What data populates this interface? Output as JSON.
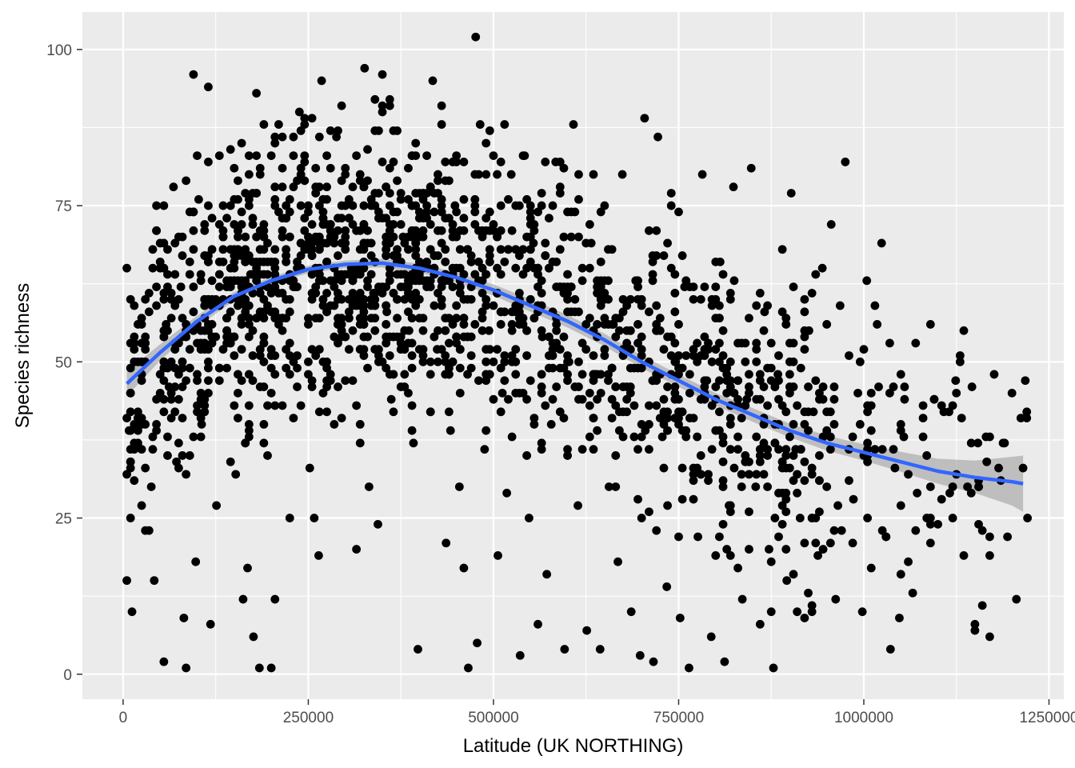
{
  "chart_data": {
    "type": "scatter",
    "title": "",
    "xlabel": "Latitude (UK NORTHING)",
    "ylabel": "Species richness",
    "xlim": [
      -55000,
      1270000
    ],
    "ylim": [
      -4,
      106
    ],
    "x_ticks": [
      0,
      250000,
      500000,
      750000,
      1000000,
      1250000
    ],
    "x_tick_labels": [
      "0",
      "250000",
      "500000",
      "750000",
      "1000000",
      "1250000"
    ],
    "y_ticks": [
      0,
      25,
      50,
      75,
      100
    ],
    "y_tick_labels": [
      "0",
      "25",
      "50",
      "75",
      "100"
    ],
    "grid": true,
    "legend": "none",
    "colors": {
      "panel": "#ebebeb",
      "grid": "#ffffff",
      "points": "#000000",
      "smooth_line": "#3366ff",
      "ribbon": "#999999"
    },
    "points": {
      "description_free": true,
      "sampled": [
        [
          5000,
          15
        ],
        [
          8000,
          39
        ],
        [
          12000,
          10
        ],
        [
          15000,
          54
        ],
        [
          20000,
          41
        ],
        [
          25000,
          27
        ],
        [
          30000,
          60
        ],
        [
          35000,
          23
        ],
        [
          38000,
          30
        ],
        [
          42000,
          15
        ],
        [
          45000,
          75
        ],
        [
          50000,
          69
        ],
        [
          55000,
          2
        ],
        [
          58000,
          56
        ],
        [
          62000,
          46
        ],
        [
          68000,
          78
        ],
        [
          72000,
          34
        ],
        [
          78000,
          62
        ],
        [
          82000,
          9
        ],
        [
          85000,
          1
        ],
        [
          90000,
          49
        ],
        [
          95000,
          96
        ],
        [
          98000,
          18
        ],
        [
          102000,
          76
        ],
        [
          106000,
          40
        ],
        [
          110000,
          67
        ],
        [
          115000,
          94
        ],
        [
          118000,
          8
        ],
        [
          122000,
          59
        ],
        [
          126000,
          27
        ],
        [
          130000,
          83
        ],
        [
          135000,
          70
        ],
        [
          140000,
          55
        ],
        [
          145000,
          62
        ],
        [
          152000,
          32
        ],
        [
          160000,
          85
        ],
        [
          162000,
          12
        ],
        [
          168000,
          17
        ],
        [
          172000,
          64
        ],
        [
          176000,
          6
        ],
        [
          180000,
          93
        ],
        [
          184000,
          1
        ],
        [
          190000,
          71
        ],
        [
          195000,
          66
        ],
        [
          200000,
          1
        ],
        [
          205000,
          12
        ],
        [
          210000,
          88
        ],
        [
          215000,
          43
        ],
        [
          220000,
          75
        ],
        [
          225000,
          25
        ],
        [
          232000,
          62
        ],
        [
          238000,
          90
        ],
        [
          245000,
          73
        ],
        [
          252000,
          33
        ],
        [
          258000,
          25
        ],
        [
          264000,
          19
        ],
        [
          268000,
          95
        ],
        [
          275000,
          69
        ],
        [
          280000,
          59
        ],
        [
          288000,
          86
        ],
        [
          295000,
          91
        ],
        [
          300000,
          47
        ],
        [
          308000,
          65
        ],
        [
          315000,
          20
        ],
        [
          320000,
          71
        ],
        [
          326000,
          97
        ],
        [
          332000,
          30
        ],
        [
          338000,
          61
        ],
        [
          344000,
          24
        ],
        [
          350000,
          96
        ],
        [
          356000,
          58
        ],
        [
          362000,
          44
        ],
        [
          370000,
          87
        ],
        [
          378000,
          70
        ],
        [
          386000,
          55
        ],
        [
          392000,
          37
        ],
        [
          398000,
          4
        ],
        [
          405000,
          77
        ],
        [
          412000,
          65
        ],
        [
          418000,
          95
        ],
        [
          424000,
          52
        ],
        [
          430000,
          88
        ],
        [
          436000,
          21
        ],
        [
          442000,
          39
        ],
        [
          448000,
          75
        ],
        [
          454000,
          30
        ],
        [
          460000,
          17
        ],
        [
          466000,
          1
        ],
        [
          470000,
          60
        ],
        [
          476000,
          102
        ],
        [
          478000,
          5
        ],
        [
          482000,
          88
        ],
        [
          488000,
          36
        ],
        [
          494000,
          55
        ],
        [
          500000,
          72
        ],
        [
          506000,
          19
        ],
        [
          512000,
          45
        ],
        [
          518000,
          29
        ],
        [
          524000,
          80
        ],
        [
          530000,
          59
        ],
        [
          536000,
          3
        ],
        [
          542000,
          83
        ],
        [
          548000,
          25
        ],
        [
          554000,
          69
        ],
        [
          560000,
          8
        ],
        [
          566000,
          54
        ],
        [
          572000,
          16
        ],
        [
          578000,
          40
        ],
        [
          584000,
          82
        ],
        [
          590000,
          62
        ],
        [
          596000,
          4
        ],
        [
          602000,
          50
        ],
        [
          608000,
          88
        ],
        [
          614000,
          27
        ],
        [
          620000,
          36
        ],
        [
          626000,
          7
        ],
        [
          632000,
          69
        ],
        [
          638000,
          48
        ],
        [
          644000,
          4
        ],
        [
          650000,
          75
        ],
        [
          656000,
          30
        ],
        [
          662000,
          56
        ],
        [
          668000,
          18
        ],
        [
          674000,
          80
        ],
        [
          680000,
          44
        ],
        [
          686000,
          10
        ],
        [
          692000,
          63
        ],
        [
          698000,
          3
        ],
        [
          704000,
          89
        ],
        [
          710000,
          26
        ],
        [
          716000,
          2
        ],
        [
          722000,
          86
        ],
        [
          728000,
          38
        ],
        [
          734000,
          14
        ],
        [
          740000,
          75
        ],
        [
          746000,
          50
        ],
        [
          752000,
          9
        ],
        [
          758000,
          62
        ],
        [
          764000,
          1
        ],
        [
          770000,
          33
        ],
        [
          776000,
          22
        ],
        [
          782000,
          80
        ],
        [
          788000,
          47
        ],
        [
          794000,
          6
        ],
        [
          800000,
          39
        ],
        [
          806000,
          66
        ],
        [
          812000,
          2
        ],
        [
          818000,
          27
        ],
        [
          824000,
          78
        ],
        [
          830000,
          53
        ],
        [
          836000,
          12
        ],
        [
          842000,
          44
        ],
        [
          848000,
          81
        ],
        [
          854000,
          30
        ],
        [
          860000,
          8
        ],
        [
          866000,
          58
        ],
        [
          872000,
          20
        ],
        [
          878000,
          1
        ],
        [
          884000,
          48
        ],
        [
          890000,
          68
        ],
        [
          896000,
          15
        ],
        [
          902000,
          77
        ],
        [
          908000,
          36
        ],
        [
          914000,
          25
        ],
        [
          920000,
          9
        ],
        [
          926000,
          55
        ],
        [
          932000,
          42
        ],
        [
          938000,
          19
        ],
        [
          944000,
          65
        ],
        [
          950000,
          30
        ],
        [
          956000,
          72
        ],
        [
          962000,
          12
        ],
        [
          968000,
          59
        ],
        [
          975000,
          82
        ],
        [
          980000,
          36
        ],
        [
          986000,
          28
        ],
        [
          992000,
          45
        ],
        [
          998000,
          10
        ],
        [
          1004000,
          63
        ],
        [
          1010000,
          17
        ],
        [
          1018000,
          56
        ],
        [
          1024000,
          69
        ],
        [
          1030000,
          22
        ],
        [
          1036000,
          4
        ],
        [
          1042000,
          33
        ],
        [
          1048000,
          9
        ],
        [
          1054000,
          38
        ],
        [
          1060000,
          18
        ],
        [
          1066000,
          13
        ],
        [
          1072000,
          29
        ],
        [
          1080000,
          38
        ],
        [
          1090000,
          25
        ],
        [
          1100000,
          24
        ],
        [
          1108000,
          42
        ],
        [
          1116000,
          29
        ],
        [
          1124000,
          47
        ],
        [
          1132000,
          41
        ],
        [
          1140000,
          30
        ],
        [
          1146000,
          46
        ],
        [
          1150000,
          7
        ],
        [
          1154000,
          37
        ],
        [
          1160000,
          11
        ],
        [
          1166000,
          34
        ],
        [
          1170000,
          6
        ],
        [
          1176000,
          48
        ],
        [
          1182000,
          33
        ],
        [
          1188000,
          37
        ],
        [
          1194000,
          22
        ],
        [
          1200000,
          45
        ],
        [
          1206000,
          12
        ],
        [
          1212000,
          41
        ],
        [
          1218000,
          47
        ],
        [
          1221000,
          25
        ]
      ]
    },
    "smooth": {
      "method": "loess",
      "x": [
        5000,
        50000,
        100000,
        150000,
        200000,
        250000,
        300000,
        350000,
        400000,
        450000,
        500000,
        550000,
        600000,
        650000,
        700000,
        750000,
        800000,
        850000,
        900000,
        950000,
        1000000,
        1050000,
        1100000,
        1150000,
        1200000,
        1215000
      ],
      "y": [
        46.5,
        51.5,
        56.5,
        60.5,
        63.0,
        64.8,
        65.6,
        65.8,
        65.0,
        63.5,
        61.5,
        59.0,
        56.5,
        53.5,
        50.0,
        47.0,
        44.0,
        41.5,
        39.0,
        37.0,
        35.5,
        34.0,
        32.5,
        31.5,
        30.8,
        30.5
      ],
      "lower": [
        44.5,
        50.2,
        55.6,
        59.8,
        62.4,
        64.2,
        65.0,
        65.1,
        64.3,
        62.7,
        60.6,
        58.0,
        55.5,
        52.5,
        49.0,
        46.0,
        43.0,
        40.4,
        37.9,
        35.8,
        34.2,
        32.4,
        30.5,
        29.0,
        27.0,
        26.0
      ],
      "upper": [
        48.5,
        52.8,
        57.4,
        61.2,
        63.6,
        65.4,
        66.2,
        66.5,
        65.7,
        64.3,
        62.4,
        60.0,
        57.5,
        54.5,
        51.0,
        48.0,
        45.0,
        42.6,
        40.1,
        38.2,
        36.8,
        35.6,
        34.5,
        34.2,
        34.8,
        35.0
      ]
    }
  }
}
